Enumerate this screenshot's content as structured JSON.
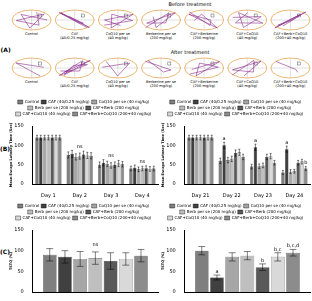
{
  "panel_labels": [
    "(A)",
    "(B)",
    "(C)"
  ],
  "panel_a": {
    "rows": [
      {
        "title": "Before treatment",
        "labels": [
          "Control",
          "CAF (40/0.25 mg/kg)",
          "CoQ10 per se (40 mg/kg)",
          "Berberine per se (200 mg/kg)",
          "CAF+Berberine (200 mg/kg)",
          "CAF+CoQ10 (40 mg/kg)",
          "CAF+Berb+CoQ10 (200+40 mg/kg)"
        ]
      },
      {
        "title": "After treatment",
        "labels": [
          "Control",
          "CAF (40/0.25 mg/kg)",
          "CoQ10 per se (40 mg/kg)",
          "Berberine per se (200 mg/kg)",
          "CAF+Berberine (200 mg/kg)",
          "CAF+CoQ10 (40 mg/kg)",
          "CAF+Berb+CoQ10 (200+40 mg/kg)"
        ]
      }
    ]
  },
  "chart_data": [
    {
      "type": "bar",
      "y_label": "Mean Escape Latency Time (Sec)",
      "categories": [
        "Day 1",
        "Day 2",
        "Day 3",
        "Day 4"
      ],
      "ylim": [
        0,
        150
      ],
      "yticks": [
        0,
        50,
        100,
        150
      ],
      "grid": false,
      "legend": "top",
      "series": [
        {
          "name": "Control",
          "color": "#7f7f7f",
          "values": [
            120,
            75,
            50,
            40
          ],
          "errors": [
            6,
            8,
            7,
            6
          ]
        },
        {
          "name": "CAF (40/0.25 mg/kg)",
          "color": "#404040",
          "values": [
            120,
            78,
            55,
            42
          ],
          "errors": [
            6,
            9,
            8,
            7
          ]
        },
        {
          "name": "CoQ10 per se (40 mg/kg)",
          "color": "#a6a6a6",
          "values": [
            120,
            70,
            52,
            38
          ],
          "errors": [
            6,
            8,
            7,
            6
          ]
        },
        {
          "name": "Berb per se (200 mg/kg)",
          "color": "#bfbfbf",
          "values": [
            120,
            72,
            48,
            40
          ],
          "errors": [
            6,
            8,
            7,
            6
          ]
        },
        {
          "name": "CAF+Berb (200 mg/kg)",
          "color": "#595959",
          "values": [
            120,
            76,
            50,
            41
          ],
          "errors": [
            6,
            9,
            7,
            6
          ]
        },
        {
          "name": "CAF+CoQ10 (40 mg/kg)",
          "color": "#d9d9d9",
          "values": [
            120,
            74,
            53,
            39
          ],
          "errors": [
            6,
            8,
            8,
            6
          ]
        },
        {
          "name": "CAF+Berb+CoQ10 (200+40 mg/kg)",
          "color": "#8c8c8c",
          "values": [
            120,
            73,
            51,
            40
          ],
          "errors": [
            6,
            8,
            7,
            6
          ]
        }
      ],
      "annotations": [
        {
          "category": "Day 2",
          "text": "ns"
        },
        {
          "category": "Day 3",
          "text": "ns"
        },
        {
          "category": "Day 4",
          "text": "ns"
        }
      ]
    },
    {
      "type": "bar",
      "y_label": "Mean Escape Latency Time (Sec)",
      "categories": [
        "Day 21",
        "Day 22",
        "Day 23",
        "Day 24"
      ],
      "ylim": [
        0,
        150
      ],
      "yticks": [
        0,
        50,
        100,
        150
      ],
      "grid": false,
      "legend": "top",
      "series": [
        {
          "name": "Control",
          "color": "#7f7f7f",
          "values": [
            120,
            60,
            45,
            30
          ],
          "errors": [
            6,
            7,
            6,
            5
          ]
        },
        {
          "name": "CAF (40/0.25 mg/kg)",
          "color": "#404040",
          "values": [
            120,
            100,
            95,
            90
          ],
          "errors": [
            6,
            8,
            8,
            8
          ]
        },
        {
          "name": "CoQ10 per se (40 mg/kg)",
          "color": "#a6a6a6",
          "values": [
            120,
            62,
            46,
            32
          ],
          "errors": [
            6,
            7,
            6,
            5
          ]
        },
        {
          "name": "Berb per se (200 mg/kg)",
          "color": "#bfbfbf",
          "values": [
            120,
            65,
            48,
            33
          ],
          "errors": [
            6,
            7,
            6,
            5
          ]
        },
        {
          "name": "CAF+Berb (200 mg/kg)",
          "color": "#595959",
          "values": [
            120,
            80,
            70,
            55
          ],
          "errors": [
            6,
            8,
            7,
            6
          ]
        },
        {
          "name": "CAF+CoQ10 (40 mg/kg)",
          "color": "#d9d9d9",
          "values": [
            120,
            82,
            72,
            58
          ],
          "errors": [
            6,
            8,
            7,
            6
          ]
        },
        {
          "name": "CAF+Berb+CoQ10 (200+40 mg/kg)",
          "color": "#8c8c8c",
          "values": [
            120,
            70,
            55,
            40
          ],
          "errors": [
            6,
            7,
            6,
            5
          ]
        }
      ],
      "annotations": [
        {
          "category": "Day 22",
          "series": "CAF (40/0.25 mg/kg)",
          "text": "a"
        },
        {
          "category": "Day 23",
          "series": "CAF (40/0.25 mg/kg)",
          "text": "a"
        },
        {
          "category": "Day 24",
          "series": "CAF (40/0.25 mg/kg)",
          "text": "a"
        },
        {
          "category": "Day 24",
          "series": "CAF+Berb+CoQ10 (200+40 mg/kg)",
          "text": "b"
        }
      ]
    },
    {
      "type": "bar",
      "y_label": "TSTQ (%)",
      "categories": [
        null
      ],
      "ylim": [
        0,
        150
      ],
      "yticks": [
        0,
        50,
        100,
        150
      ],
      "grid": false,
      "legend": "top",
      "tick_labels": "y",
      "series": [
        {
          "name": "Control",
          "color": "#7f7f7f",
          "values": [
            90
          ],
          "errors": [
            15
          ]
        },
        {
          "name": "CAF (40/0.25 mg/kg)",
          "color": "#404040",
          "values": [
            85
          ],
          "errors": [
            15
          ]
        },
        {
          "name": "CoQ10 per se (40 mg/kg)",
          "color": "#a6a6a6",
          "values": [
            80
          ],
          "errors": [
            18
          ]
        },
        {
          "name": "Berb per se (200 mg/kg)",
          "color": "#bfbfbf",
          "values": [
            82
          ],
          "errors": [
            15
          ]
        },
        {
          "name": "CAF+Berb (200 mg/kg)",
          "color": "#595959",
          "values": [
            75
          ],
          "errors": [
            20
          ]
        },
        {
          "name": "CAF+CoQ10 (40 mg/kg)",
          "color": "#d9d9d9",
          "values": [
            80
          ],
          "errors": [
            15
          ]
        },
        {
          "name": "CAF+Berb+CoQ10 (200+40 mg/kg)",
          "color": "#8c8c8c",
          "values": [
            88
          ],
          "errors": [
            15
          ]
        }
      ],
      "annotations": [
        {
          "text": "ns"
        }
      ]
    },
    {
      "type": "bar",
      "y_label": "TSTQ (%)",
      "categories": [
        null
      ],
      "ylim": [
        0,
        150
      ],
      "yticks": [
        0,
        50,
        100,
        150
      ],
      "grid": false,
      "legend": "top",
      "tick_labels": "y",
      "series": [
        {
          "name": "Control",
          "color": "#7f7f7f",
          "values": [
            100
          ],
          "errors": [
            10
          ]
        },
        {
          "name": "CAF (40/0.25 mg/kg)",
          "color": "#404040",
          "values": [
            35
          ],
          "errors": [
            6
          ]
        },
        {
          "name": "CoQ10 per se (40 mg/kg)",
          "color": "#a6a6a6",
          "values": [
            85
          ],
          "errors": [
            10
          ]
        },
        {
          "name": "Berb per se (200 mg/kg)",
          "color": "#bfbfbf",
          "values": [
            88
          ],
          "errors": [
            10
          ]
        },
        {
          "name": "CAF+Berb (200 mg/kg)",
          "color": "#595959",
          "values": [
            60
          ],
          "errors": [
            8
          ]
        },
        {
          "name": "CAF+CoQ10 (40 mg/kg)",
          "color": "#d9d9d9",
          "values": [
            85
          ],
          "errors": [
            10
          ]
        },
        {
          "name": "CAF+Berb+CoQ10 (200+40 mg/kg)",
          "color": "#8c8c8c",
          "values": [
            95
          ],
          "errors": [
            8
          ]
        }
      ],
      "annotations": [
        {
          "series": "CAF (40/0.25 mg/kg)",
          "text": "a"
        },
        {
          "series": "CAF+Berb (200 mg/kg)",
          "text": "b"
        },
        {
          "series": "CAF+CoQ10 (40 mg/kg)",
          "text": "b,c"
        },
        {
          "series": "CAF+Berb+CoQ10 (200+40 mg/kg)",
          "text": "b,c,d"
        }
      ]
    }
  ]
}
